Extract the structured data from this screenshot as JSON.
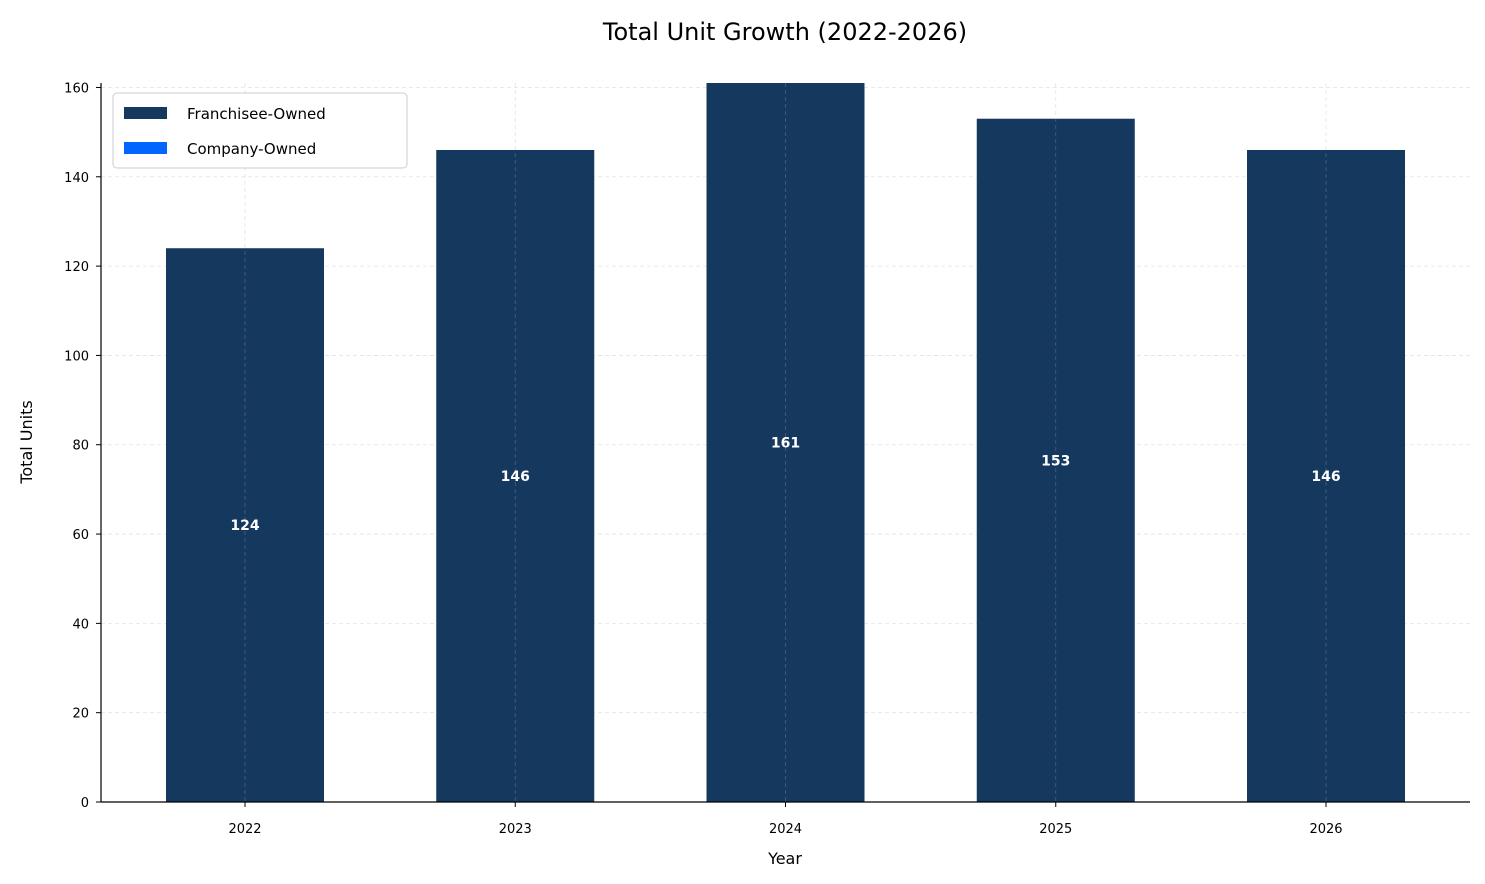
{
  "chart_data": {
    "type": "bar",
    "stacked": true,
    "title": "Total Unit Growth (2022-2026)",
    "xlabel": "Year",
    "ylabel": "Total Units",
    "categories": [
      "2022",
      "2023",
      "2024",
      "2025",
      "2026"
    ],
    "series": [
      {
        "name": "Franchisee-Owned",
        "values": [
          124,
          146,
          161,
          153,
          146
        ],
        "color": "#15385f"
      },
      {
        "name": "Company-Owned",
        "values": [
          0,
          0,
          0,
          0,
          0
        ],
        "color": "#0066ff"
      }
    ],
    "totals": [
      "124",
      "146",
      "161",
      "153",
      "146"
    ],
    "ylim": [
      0,
      161
    ],
    "yticks": [
      0,
      20,
      40,
      60,
      80,
      100,
      120,
      140,
      160
    ],
    "grid": true,
    "legend_position": "top-left"
  }
}
